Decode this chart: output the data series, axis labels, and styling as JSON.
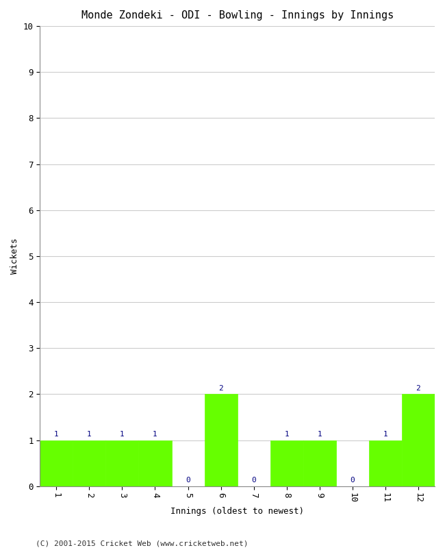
{
  "title": "Monde Zondeki - ODI - Bowling - Innings by Innings",
  "xlabel": "Innings (oldest to newest)",
  "ylabel": "Wickets",
  "categories": [
    "1",
    "2",
    "3",
    "4",
    "5",
    "6",
    "7",
    "8",
    "9",
    "10",
    "11",
    "12"
  ],
  "values": [
    1,
    1,
    1,
    1,
    0,
    2,
    0,
    1,
    1,
    0,
    1,
    2
  ],
  "bar_color": "#66ff00",
  "bar_edge_color": "#66ff00",
  "label_color": "#000080",
  "ylim": [
    0,
    10
  ],
  "yticks": [
    0,
    1,
    2,
    3,
    4,
    5,
    6,
    7,
    8,
    9,
    10
  ],
  "background_color": "#ffffff",
  "grid_color": "#cccccc",
  "footer": "(C) 2001-2015 Cricket Web (www.cricketweb.net)",
  "title_fontsize": 11,
  "axis_label_fontsize": 9,
  "tick_fontsize": 9,
  "annotation_fontsize": 8,
  "footer_fontsize": 8
}
